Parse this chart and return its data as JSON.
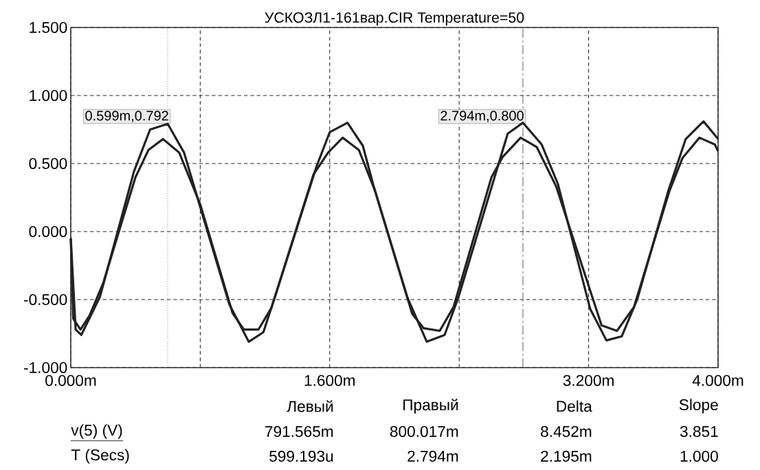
{
  "chart_data": {
    "type": "line",
    "title": "УСКОЗЛ1-161вар.CIR Temperature=50",
    "xlim": [
      0,
      4.0
    ],
    "ylim": [
      -1.0,
      1.5
    ],
    "xticks": [
      {
        "value": 0,
        "label": "0.000m"
      },
      {
        "value": 0.8,
        "label": null
      },
      {
        "value": 1.6,
        "label": "1.600m"
      },
      {
        "value": 2.4,
        "label": null
      },
      {
        "value": 3.2,
        "label": "3.200m"
      },
      {
        "value": 4.0,
        "label": "4.000m"
      }
    ],
    "yticks": [
      {
        "value": -1.0,
        "label": "-1.000"
      },
      {
        "value": -0.5,
        "label": "-0.500"
      },
      {
        "value": 0,
        "label": "0.000"
      },
      {
        "value": 0.5,
        "label": "0.500"
      },
      {
        "value": 1.0,
        "label": "1.000"
      },
      {
        "value": 1.5,
        "label": "1.500"
      }
    ],
    "grid": true,
    "marker": "none",
    "line_style": "solid",
    "series": [
      {
        "color": "#222222",
        "x": [
          0,
          0.03,
          0.065,
          0.18,
          0.21,
          0.39,
          0.49,
          0.599,
          0.7,
          0.79,
          0.98,
          1.1,
          1.19,
          1.27,
          1.516,
          1.6,
          1.71,
          1.805,
          1.87,
          2.08,
          2.2,
          2.31,
          2.395,
          2.7,
          2.794,
          2.91,
          3.01,
          3.21,
          3.31,
          3.405,
          3.5,
          3.69,
          3.8,
          3.91,
          4.0
        ],
        "values": [
          -0.05,
          -0.72,
          -0.76,
          -0.48,
          -0.35,
          0.44,
          0.75,
          0.792,
          0.58,
          0.22,
          -0.535,
          -0.81,
          -0.74,
          -0.45,
          0.47,
          0.73,
          0.8,
          0.63,
          0.34,
          -0.485,
          -0.81,
          -0.76,
          -0.485,
          0.72,
          0.8,
          0.64,
          0.35,
          -0.57,
          -0.8,
          -0.77,
          -0.5,
          0.29,
          0.68,
          0.81,
          0.68
        ]
      },
      {
        "color": "#222222",
        "x": [
          0,
          0.015,
          0.06,
          0.115,
          0.2,
          0.4,
          0.48,
          0.57,
          0.67,
          0.8,
          1.0,
          1.07,
          1.16,
          1.24,
          1.5,
          1.59,
          1.68,
          1.78,
          1.88,
          2.11,
          2.18,
          2.28,
          2.365,
          2.6,
          2.67,
          2.78,
          2.88,
          3.0,
          3.28,
          3.375,
          3.48,
          3.7,
          3.78,
          3.885,
          3.98,
          4.0
        ],
        "values": [
          -0.05,
          -0.64,
          -0.72,
          -0.62,
          -0.38,
          0.4,
          0.6,
          0.68,
          0.58,
          0.2,
          -0.6,
          -0.72,
          -0.72,
          -0.56,
          0.42,
          0.58,
          0.69,
          0.6,
          0.3,
          -0.605,
          -0.71,
          -0.73,
          -0.555,
          0.4,
          0.55,
          0.69,
          0.62,
          0.33,
          -0.69,
          -0.73,
          -0.555,
          0.3,
          0.54,
          0.69,
          0.64,
          0.59
        ]
      }
    ],
    "ref_lines": [
      {
        "axis": "x",
        "value": 0.599,
        "label": "0.599m,0.792",
        "line_style": "dotted"
      },
      {
        "axis": "x",
        "value": 2.794,
        "label": "2.794m,0.800",
        "line_style": "dashed"
      }
    ],
    "annotations": [
      "Левый",
      "Правый",
      "Delta",
      "Slope",
      "v(5) (V)",
      "791.565m",
      "800.017m",
      "8.452m",
      "3.851",
      "T (Secs)",
      "599.193u",
      "2.794m",
      "2.195m",
      "1.000"
    ]
  }
}
